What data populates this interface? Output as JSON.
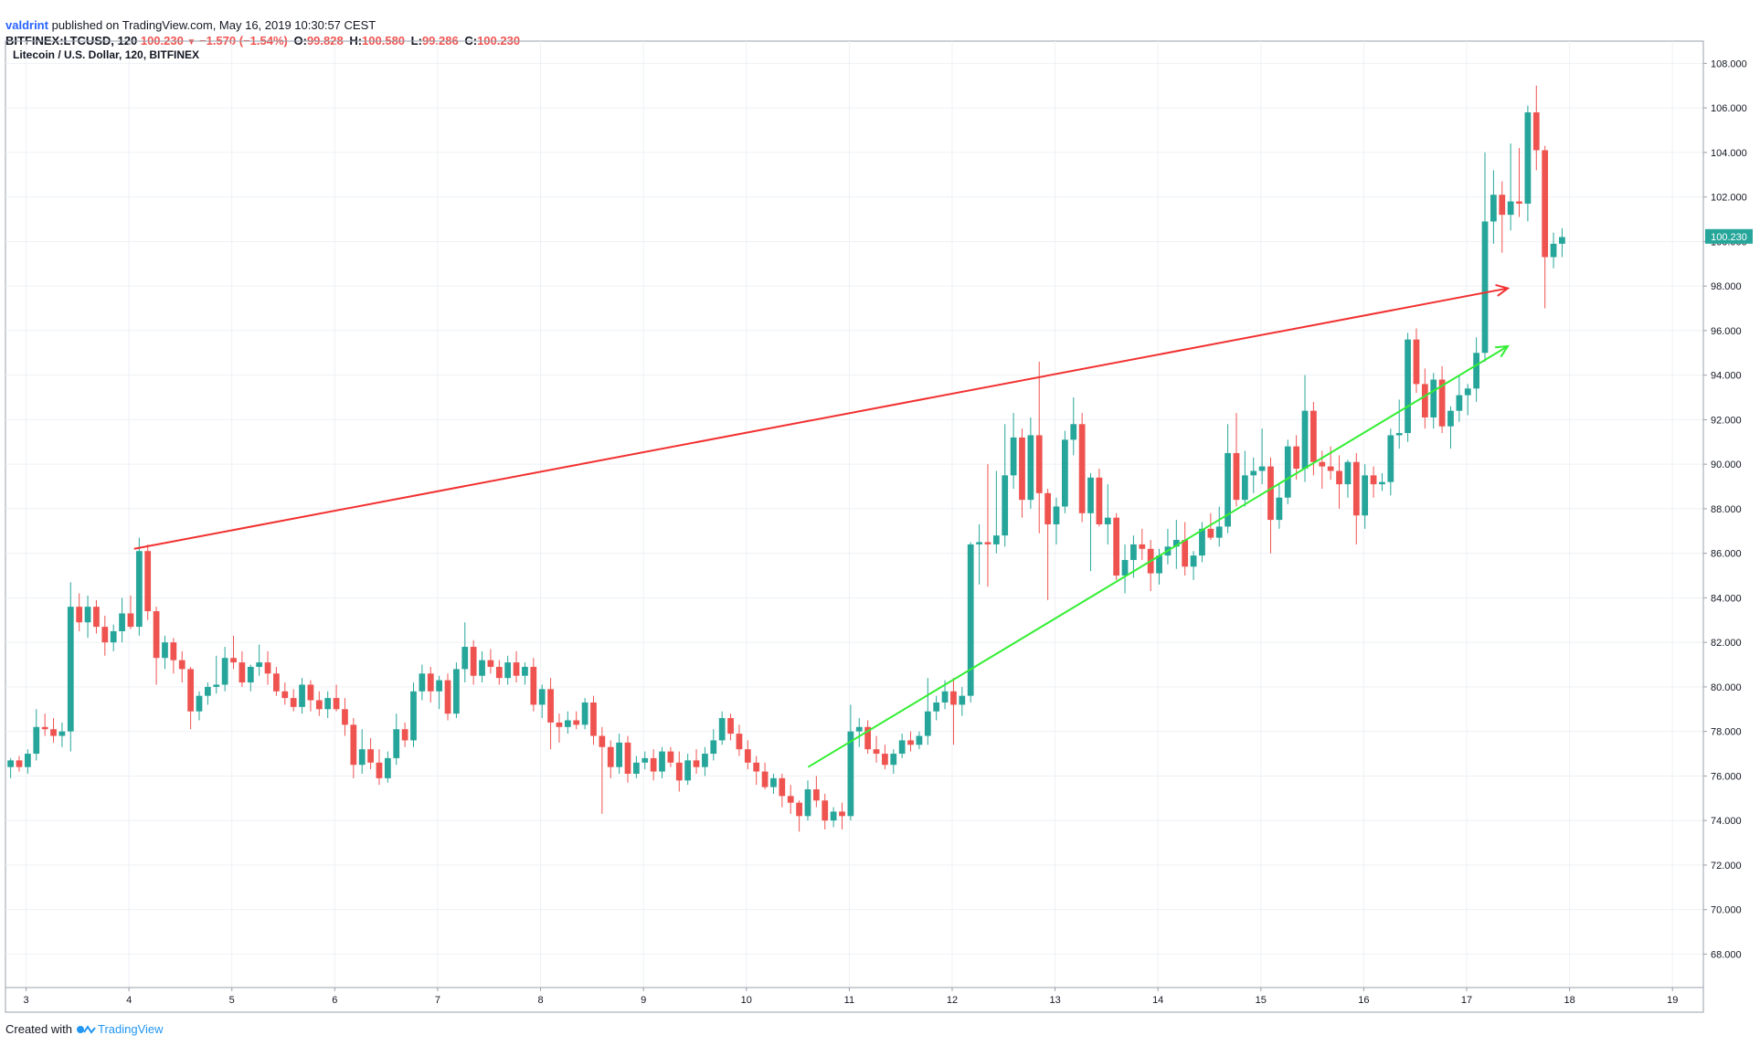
{
  "header": {
    "user": "valdrint",
    "text": "published on TradingView.com, May 16, 2019 10:30:57 CEST"
  },
  "symbol_bar": {
    "symbol": "BITFINEX:LTCUSD, 120",
    "last": "100.230",
    "change": "−1.570 (−1.54%)",
    "o_label": "O:",
    "o": "99.828",
    "h_label": "H:",
    "h": "100.580",
    "l_label": "L:",
    "l": "99.286",
    "c_label": "C:",
    "c": "100.230"
  },
  "footer": {
    "created": "Created with",
    "brand": "TradingView"
  },
  "colors": {
    "up": "#26a69a",
    "down": "#ef5350",
    "resistance": "#f23030",
    "support": "#33ee33",
    "grid": "#eef1f5"
  },
  "chart_data": {
    "type": "candlestick",
    "title": "Litecoin / U.S. Dollar, 120, BITFINEX",
    "xlabel": "",
    "ylabel": "",
    "ylim": [
      66.5,
      109
    ],
    "xlim": [
      2.8,
      19.3
    ],
    "y_ticks": [
      "68.000",
      "70.000",
      "72.000",
      "74.000",
      "76.000",
      "78.000",
      "80.000",
      "82.000",
      "84.000",
      "86.000",
      "88.000",
      "90.000",
      "92.000",
      "94.000",
      "96.000",
      "98.000",
      "100.000",
      "102.000",
      "104.000",
      "106.000",
      "108.000"
    ],
    "x_ticks": [
      "3",
      "4",
      "5",
      "6",
      "7",
      "8",
      "9",
      "10",
      "11",
      "12",
      "13",
      "14",
      "15",
      "16",
      "17",
      "18",
      "19"
    ],
    "last_price_label": "100.230",
    "grid": true,
    "candle_interval_days": 0.0833,
    "first_candle_day": 2.85,
    "candles": [
      [
        76.4,
        76.8,
        75.9,
        76.7
      ],
      [
        76.7,
        76.9,
        76.2,
        76.4
      ],
      [
        76.4,
        77.2,
        76.1,
        77.0
      ],
      [
        77.0,
        79.0,
        76.7,
        78.2
      ],
      [
        78.2,
        78.8,
        77.8,
        78.1
      ],
      [
        78.1,
        78.6,
        77.5,
        77.8
      ],
      [
        77.8,
        78.4,
        77.3,
        78.0
      ],
      [
        78.0,
        84.7,
        77.1,
        83.6
      ],
      [
        83.6,
        84.2,
        82.5,
        82.9
      ],
      [
        82.9,
        84.1,
        82.2,
        83.6
      ],
      [
        83.6,
        83.9,
        82.4,
        82.7
      ],
      [
        82.7,
        83.2,
        81.4,
        82.0
      ],
      [
        82.0,
        82.8,
        81.6,
        82.5
      ],
      [
        82.5,
        84.0,
        82.0,
        83.3
      ],
      [
        83.3,
        84.1,
        82.6,
        82.7
      ],
      [
        82.7,
        86.7,
        82.3,
        86.1
      ],
      [
        86.1,
        86.4,
        83.0,
        83.4
      ],
      [
        83.4,
        83.6,
        80.1,
        81.3
      ],
      [
        81.3,
        82.3,
        80.8,
        82.0
      ],
      [
        82.0,
        82.2,
        80.6,
        81.2
      ],
      [
        81.2,
        81.6,
        80.2,
        80.8
      ],
      [
        80.8,
        80.9,
        78.1,
        78.9
      ],
      [
        78.9,
        79.8,
        78.5,
        79.6
      ],
      [
        79.6,
        80.2,
        79.2,
        80.0
      ],
      [
        80.0,
        81.4,
        79.7,
        80.1
      ],
      [
        80.1,
        81.8,
        79.8,
        81.3
      ],
      [
        81.3,
        82.3,
        80.8,
        81.1
      ],
      [
        81.1,
        81.6,
        80.0,
        80.2
      ],
      [
        80.2,
        81.0,
        79.8,
        80.9
      ],
      [
        80.9,
        81.9,
        80.5,
        81.1
      ],
      [
        81.1,
        81.6,
        80.1,
        80.6
      ],
      [
        80.6,
        80.9,
        79.6,
        79.8
      ],
      [
        79.8,
        80.2,
        79.2,
        79.5
      ],
      [
        79.5,
        79.9,
        78.9,
        79.1
      ],
      [
        79.1,
        80.4,
        78.8,
        80.1
      ],
      [
        80.1,
        80.3,
        78.9,
        79.4
      ],
      [
        79.4,
        79.8,
        78.7,
        79.0
      ],
      [
        79.0,
        79.8,
        78.6,
        79.5
      ],
      [
        79.5,
        80.1,
        78.9,
        79.0
      ],
      [
        79.0,
        79.5,
        77.8,
        78.3
      ],
      [
        78.3,
        78.6,
        75.9,
        76.5
      ],
      [
        76.5,
        78.1,
        76.1,
        77.2
      ],
      [
        77.2,
        77.7,
        76.3,
        76.6
      ],
      [
        76.6,
        77.2,
        75.6,
        75.9
      ],
      [
        75.9,
        77.1,
        75.7,
        76.8
      ],
      [
        76.8,
        78.8,
        76.5,
        78.1
      ],
      [
        78.1,
        78.4,
        77.3,
        77.6
      ],
      [
        77.6,
        80.2,
        77.3,
        79.8
      ],
      [
        79.8,
        81.0,
        79.4,
        80.6
      ],
      [
        80.6,
        80.9,
        79.3,
        79.8
      ],
      [
        79.8,
        80.5,
        79.0,
        80.3
      ],
      [
        80.3,
        80.6,
        78.5,
        78.8
      ],
      [
        78.8,
        81.1,
        78.6,
        80.8
      ],
      [
        80.8,
        82.9,
        80.2,
        81.8
      ],
      [
        81.8,
        82.1,
        80.1,
        80.5
      ],
      [
        80.5,
        81.6,
        80.2,
        81.2
      ],
      [
        81.2,
        81.7,
        80.6,
        80.9
      ],
      [
        80.9,
        81.2,
        80.1,
        80.4
      ],
      [
        80.4,
        81.4,
        80.1,
        81.1
      ],
      [
        81.1,
        81.6,
        80.2,
        80.5
      ],
      [
        80.5,
        81.1,
        80.1,
        80.9
      ],
      [
        80.9,
        81.3,
        78.9,
        79.2
      ],
      [
        79.2,
        80.1,
        78.6,
        79.9
      ],
      [
        79.9,
        80.4,
        77.2,
        78.4
      ],
      [
        78.4,
        78.8,
        77.5,
        78.2
      ],
      [
        78.2,
        78.9,
        77.9,
        78.5
      ],
      [
        78.5,
        78.9,
        78.1,
        78.3
      ],
      [
        78.3,
        79.5,
        78.1,
        79.3
      ],
      [
        79.3,
        79.6,
        77.4,
        77.8
      ],
      [
        77.8,
        78.2,
        74.3,
        77.3
      ],
      [
        77.3,
        77.6,
        75.9,
        76.4
      ],
      [
        76.4,
        77.9,
        76.1,
        77.5
      ],
      [
        77.5,
        77.8,
        75.7,
        76.1
      ],
      [
        76.1,
        76.9,
        75.9,
        76.6
      ],
      [
        76.6,
        77.1,
        76.3,
        76.8
      ],
      [
        76.8,
        77.2,
        75.8,
        76.2
      ],
      [
        76.2,
        77.3,
        75.9,
        77.1
      ],
      [
        77.1,
        77.3,
        76.4,
        76.6
      ],
      [
        76.6,
        77.1,
        75.3,
        75.8
      ],
      [
        75.8,
        77.0,
        75.6,
        76.7
      ],
      [
        76.7,
        77.2,
        76.1,
        76.4
      ],
      [
        76.4,
        77.3,
        76.0,
        77.0
      ],
      [
        77.0,
        78.1,
        76.7,
        77.6
      ],
      [
        77.6,
        78.9,
        77.4,
        78.6
      ],
      [
        78.6,
        78.8,
        77.6,
        77.9
      ],
      [
        77.9,
        78.3,
        76.9,
        77.2
      ],
      [
        77.2,
        77.6,
        76.3,
        76.6
      ],
      [
        76.6,
        76.9,
        75.6,
        76.2
      ],
      [
        76.2,
        76.6,
        75.4,
        75.5
      ],
      [
        75.5,
        76.1,
        75.2,
        75.9
      ],
      [
        75.9,
        76.1,
        74.6,
        75.1
      ],
      [
        75.1,
        75.6,
        74.3,
        74.8
      ],
      [
        74.8,
        74.9,
        73.5,
        74.2
      ],
      [
        74.2,
        75.8,
        74.0,
        75.4
      ],
      [
        75.4,
        76.0,
        74.6,
        74.9
      ],
      [
        74.9,
        75.2,
        73.6,
        74.0
      ],
      [
        74.0,
        74.6,
        73.7,
        74.4
      ],
      [
        74.4,
        74.8,
        73.6,
        74.2
      ],
      [
        74.2,
        79.2,
        74.0,
        78.0
      ],
      [
        78.0,
        78.6,
        77.3,
        78.2
      ],
      [
        78.2,
        78.5,
        77.0,
        77.2
      ],
      [
        77.2,
        77.8,
        76.6,
        77.0
      ],
      [
        77.0,
        77.4,
        76.3,
        76.5
      ],
      [
        76.5,
        77.2,
        76.1,
        77.0
      ],
      [
        77.0,
        77.9,
        76.8,
        77.6
      ],
      [
        77.6,
        78.0,
        77.1,
        77.4
      ],
      [
        77.4,
        78.0,
        77.2,
        77.8
      ],
      [
        77.8,
        80.4,
        77.4,
        78.9
      ],
      [
        78.9,
        79.6,
        78.5,
        79.3
      ],
      [
        79.3,
        80.3,
        79.0,
        79.8
      ],
      [
        79.8,
        80.4,
        77.4,
        79.2
      ],
      [
        79.2,
        80.0,
        78.7,
        79.6
      ],
      [
        79.6,
        86.5,
        79.3,
        86.4
      ],
      [
        86.4,
        87.3,
        84.6,
        86.5
      ],
      [
        86.5,
        90.0,
        84.5,
        86.4
      ],
      [
        86.4,
        89.7,
        86.0,
        86.8
      ],
      [
        86.8,
        91.8,
        86.3,
        89.5
      ],
      [
        89.5,
        92.3,
        88.9,
        91.2
      ],
      [
        91.2,
        91.6,
        87.6,
        88.4
      ],
      [
        88.4,
        92.1,
        88.0,
        91.3
      ],
      [
        91.3,
        94.6,
        86.9,
        88.7
      ],
      [
        88.7,
        88.9,
        83.9,
        87.3
      ],
      [
        87.3,
        88.5,
        86.4,
        88.1
      ],
      [
        88.1,
        91.5,
        87.8,
        91.1
      ],
      [
        91.1,
        93.0,
        90.4,
        91.8
      ],
      [
        91.8,
        92.3,
        87.4,
        87.8
      ],
      [
        87.8,
        89.6,
        85.2,
        89.4
      ],
      [
        89.4,
        89.8,
        87.2,
        87.3
      ],
      [
        87.3,
        89.1,
        86.4,
        87.6
      ],
      [
        87.6,
        87.8,
        84.8,
        85.0
      ],
      [
        85.0,
        86.4,
        84.2,
        85.7
      ],
      [
        85.7,
        86.8,
        84.9,
        86.4
      ],
      [
        86.4,
        87.1,
        85.7,
        86.2
      ],
      [
        86.2,
        86.6,
        84.3,
        85.1
      ],
      [
        85.1,
        86.2,
        84.6,
        85.9
      ],
      [
        85.9,
        87.1,
        85.5,
        86.3
      ],
      [
        86.3,
        87.5,
        85.3,
        86.6
      ],
      [
        86.6,
        87.4,
        85.0,
        85.4
      ],
      [
        85.4,
        86.1,
        84.8,
        85.9
      ],
      [
        85.9,
        87.4,
        85.6,
        87.1
      ],
      [
        87.1,
        87.8,
        86.6,
        86.7
      ],
      [
        86.7,
        88.1,
        86.3,
        87.2
      ],
      [
        87.2,
        91.8,
        86.9,
        90.5
      ],
      [
        90.5,
        92.3,
        88.1,
        88.4
      ],
      [
        88.4,
        90.6,
        88.1,
        89.5
      ],
      [
        89.5,
        90.3,
        88.7,
        89.7
      ],
      [
        89.7,
        91.6,
        89.1,
        89.9
      ],
      [
        89.9,
        90.3,
        86.0,
        87.5
      ],
      [
        87.5,
        89.1,
        87.1,
        88.5
      ],
      [
        88.5,
        91.1,
        88.2,
        90.8
      ],
      [
        90.8,
        91.3,
        89.3,
        89.8
      ],
      [
        89.8,
        94.0,
        89.2,
        92.4
      ],
      [
        92.4,
        92.8,
        89.5,
        90.1
      ],
      [
        90.1,
        90.6,
        88.9,
        89.9
      ],
      [
        89.9,
        90.8,
        89.3,
        89.7
      ],
      [
        89.7,
        90.4,
        88.0,
        89.1
      ],
      [
        89.1,
        90.2,
        88.5,
        90.1
      ],
      [
        90.1,
        90.5,
        86.4,
        87.7
      ],
      [
        87.7,
        90.0,
        87.1,
        89.5
      ],
      [
        89.5,
        89.9,
        88.5,
        89.1
      ],
      [
        89.1,
        89.6,
        88.8,
        89.2
      ],
      [
        89.2,
        91.6,
        88.6,
        91.3
      ],
      [
        91.3,
        92.9,
        90.7,
        91.4
      ],
      [
        91.4,
        95.9,
        91.0,
        95.6
      ],
      [
        95.6,
        96.1,
        93.2,
        93.6
      ],
      [
        93.6,
        94.3,
        91.6,
        92.1
      ],
      [
        92.1,
        94.1,
        91.6,
        93.8
      ],
      [
        93.8,
        94.4,
        91.4,
        91.7
      ],
      [
        91.7,
        92.6,
        90.7,
        92.4
      ],
      [
        92.4,
        94.0,
        91.9,
        93.1
      ],
      [
        93.1,
        93.6,
        92.2,
        93.4
      ],
      [
        93.4,
        95.7,
        92.8,
        95.0
      ],
      [
        95.0,
        104.0,
        94.6,
        100.9
      ],
      [
        100.9,
        103.2,
        99.9,
        102.1
      ],
      [
        102.1,
        102.7,
        99.5,
        101.2
      ],
      [
        101.2,
        104.4,
        100.5,
        101.8
      ],
      [
        101.8,
        104.2,
        101.1,
        101.7
      ],
      [
        101.7,
        106.1,
        100.9,
        105.8
      ],
      [
        105.8,
        107.0,
        103.2,
        104.1
      ],
      [
        104.1,
        104.3,
        97.0,
        99.3
      ],
      [
        99.3,
        100.4,
        98.8,
        99.9
      ],
      [
        99.9,
        100.6,
        99.3,
        100.2
      ]
    ]
  },
  "annotations": {
    "resistance_line": {
      "from": [
        4.05,
        86.2
      ],
      "to": [
        17.4,
        97.9
      ],
      "color": "#f23030"
    },
    "support_line": {
      "from": [
        10.6,
        76.4
      ],
      "to": [
        17.4,
        95.3
      ],
      "color": "#33ee33"
    }
  }
}
